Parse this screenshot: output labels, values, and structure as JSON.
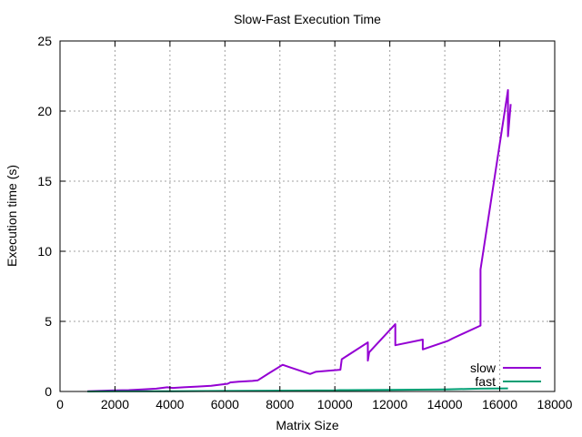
{
  "chart_data": {
    "type": "line",
    "title": "Slow-Fast Execution Time",
    "xlabel": "Matrix Size",
    "ylabel": "Execution time (s)",
    "xlim": [
      0,
      18000
    ],
    "ylim": [
      0,
      25
    ],
    "xticks": [
      0,
      2000,
      4000,
      6000,
      8000,
      10000,
      12000,
      14000,
      16000,
      18000
    ],
    "yticks": [
      0,
      5,
      10,
      15,
      20,
      25
    ],
    "grid": true,
    "legend_position": "bottom-right",
    "series": [
      {
        "name": "slow",
        "color": "#9400d3",
        "points": [
          [
            1000,
            0.02
          ],
          [
            1500,
            0.05
          ],
          [
            2000,
            0.08
          ],
          [
            2500,
            0.1
          ],
          [
            3000,
            0.15
          ],
          [
            3500,
            0.2
          ],
          [
            3900,
            0.3
          ],
          [
            4100,
            0.25
          ],
          [
            4500,
            0.3
          ],
          [
            5000,
            0.35
          ],
          [
            5500,
            0.4
          ],
          [
            5900,
            0.5
          ],
          [
            6100,
            0.55
          ],
          [
            6200,
            0.65
          ],
          [
            6500,
            0.7
          ],
          [
            7000,
            0.75
          ],
          [
            7200,
            0.8
          ],
          [
            7600,
            1.3
          ],
          [
            8100,
            1.9
          ],
          [
            8400,
            1.7
          ],
          [
            9100,
            1.25
          ],
          [
            9300,
            1.4
          ],
          [
            10200,
            1.55
          ],
          [
            10250,
            2.3
          ],
          [
            11200,
            3.5
          ],
          [
            11200,
            2.2
          ],
          [
            11250,
            2.8
          ],
          [
            12200,
            4.8
          ],
          [
            12200,
            3.3
          ],
          [
            13200,
            3.7
          ],
          [
            13200,
            3.0
          ],
          [
            14100,
            3.6
          ],
          [
            14300,
            3.8
          ],
          [
            15300,
            4.7
          ],
          [
            15300,
            8.7
          ],
          [
            16300,
            21.5
          ],
          [
            16300,
            18.2
          ],
          [
            16400,
            20.5
          ]
        ]
      },
      {
        "name": "fast",
        "color": "#009e73",
        "points": [
          [
            1000,
            0.0
          ],
          [
            2000,
            0.01
          ],
          [
            4000,
            0.02
          ],
          [
            6000,
            0.04
          ],
          [
            8000,
            0.06
          ],
          [
            10000,
            0.08
          ],
          [
            10200,
            0.1
          ],
          [
            12000,
            0.12
          ],
          [
            14000,
            0.15
          ],
          [
            15300,
            0.2
          ],
          [
            16300,
            0.22
          ]
        ]
      }
    ]
  }
}
